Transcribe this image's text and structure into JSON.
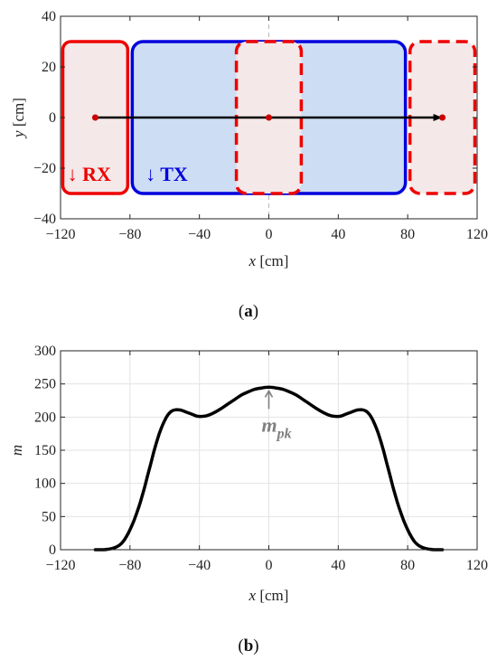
{
  "colors": {
    "rx": "#ee0000",
    "tx": "#0000dd",
    "rx_fill": "#f4e8e8",
    "tx_fill": "#ccddf4",
    "trajectory": "#000000",
    "marker": "#cc0000",
    "curve": "#000000",
    "annotation": "#808080",
    "grid": "#e3e3e3"
  },
  "chart_data": [
    {
      "type": "diagram",
      "panel_label": "(a)",
      "panel_letter": "a",
      "xlabel_var": "x",
      "xlabel_unit": " [cm]",
      "ylabel_var": "y",
      "ylabel_unit": " [cm]",
      "xlim": [
        -120,
        120
      ],
      "ylim": [
        -40,
        40
      ],
      "xticks": [
        -120,
        -80,
        -40,
        0,
        40,
        80,
        120
      ],
      "xtick_labels": [
        "−120",
        "−80",
        "−40",
        "0",
        "40",
        "80",
        "120"
      ],
      "yticks": [
        -40,
        -20,
        0,
        20,
        40
      ],
      "ytick_labels": [
        "−40",
        "−20",
        "0",
        "20",
        "40"
      ],
      "tx_coil": {
        "label": "↓ TX",
        "x": [
          -80,
          80
        ],
        "y": [
          -30,
          30
        ]
      },
      "rx_coils": [
        {
          "label": "↓ RX",
          "x": [
            -120,
            -80
          ],
          "y": [
            -30,
            30
          ],
          "style": "solid"
        },
        {
          "x": [
            -20,
            20
          ],
          "y": [
            -30,
            30
          ],
          "style": "dashed"
        },
        {
          "x": [
            80,
            120
          ],
          "y": [
            -30,
            30
          ],
          "style": "dashed"
        }
      ],
      "trajectory": {
        "from": [
          -100,
          0
        ],
        "to": [
          100,
          0
        ]
      },
      "markers": [
        [
          -100,
          0
        ],
        [
          0,
          0
        ],
        [
          100,
          0
        ]
      ]
    },
    {
      "type": "line",
      "panel_label": "(b)",
      "panel_letter": "b",
      "xlabel_var": "x",
      "xlabel_unit": " [cm]",
      "ylabel": "m",
      "xlim": [
        -120,
        120
      ],
      "ylim": [
        0,
        300
      ],
      "grid": true,
      "xticks": [
        -120,
        -80,
        -40,
        0,
        40,
        80,
        120
      ],
      "xtick_labels": [
        "−120",
        "−80",
        "−40",
        "0",
        "40",
        "80",
        "120"
      ],
      "yticks": [
        0,
        50,
        100,
        150,
        200,
        250,
        300
      ],
      "ytick_labels": [
        "0",
        "50",
        "100",
        "150",
        "200",
        "250",
        "300"
      ],
      "annotation": {
        "text_main": "m",
        "text_sub": "pk",
        "x": 0,
        "y": 245
      },
      "series": [
        {
          "x": [
            -100,
            -95,
            -92,
            -90,
            -88,
            -86,
            -84,
            -82,
            -80,
            -78,
            -76,
            -74,
            -72,
            -70,
            -68,
            -66,
            -64,
            -62,
            -60,
            -58,
            -56,
            -54,
            -52,
            -50,
            -48,
            -46,
            -44,
            -42,
            -40,
            -36,
            -32,
            -28,
            -24,
            -20,
            -16,
            -12,
            -8,
            -4,
            0,
            4,
            8,
            12,
            16,
            20,
            24,
            28,
            32,
            36,
            40,
            42,
            44,
            46,
            48,
            50,
            52,
            54,
            56,
            58,
            60,
            62,
            64,
            66,
            68,
            70,
            72,
            74,
            76,
            78,
            80,
            82,
            84,
            86,
            88,
            90,
            92,
            95,
            100
          ],
          "y": [
            0,
            0,
            1,
            2,
            4,
            7,
            12,
            20,
            30,
            42,
            56,
            72,
            90,
            110,
            130,
            150,
            168,
            183,
            195,
            204,
            209,
            211,
            211,
            210,
            208,
            206,
            204,
            202,
            201,
            202,
            206,
            212,
            219,
            226,
            233,
            238,
            242,
            244,
            245,
            244,
            242,
            238,
            233,
            226,
            219,
            212,
            206,
            202,
            201,
            202,
            204,
            206,
            208,
            210,
            211,
            211,
            209,
            204,
            195,
            183,
            168,
            150,
            130,
            110,
            90,
            72,
            56,
            42,
            30,
            20,
            12,
            7,
            4,
            2,
            1,
            0,
            0
          ]
        }
      ]
    }
  ]
}
